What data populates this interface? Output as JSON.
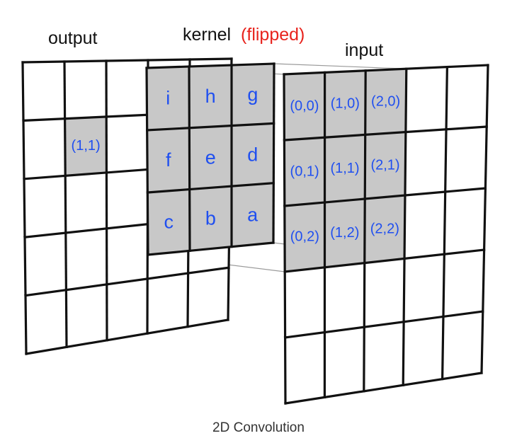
{
  "headings": {
    "output": "output",
    "kernel": "kernel",
    "kernel_note": "(flipped)",
    "input": "input"
  },
  "caption": "2D Convolution",
  "colors": {
    "label_blue": "#1f4ff0",
    "note_red": "#e8231d",
    "grid_black": "#111111",
    "shade_gray": "#c8c8c8",
    "guide_gray": "#9a9a9a"
  },
  "output_grid": {
    "rows": 5,
    "cols": 5,
    "shaded_cells": [
      {
        "col": 1,
        "row": 1,
        "label": "(1,1)"
      }
    ]
  },
  "kernel_grid": {
    "rows": 3,
    "cols": 3,
    "cells": [
      [
        "i",
        "h",
        "g"
      ],
      [
        "f",
        "e",
        "d"
      ],
      [
        "c",
        "b",
        "a"
      ]
    ]
  },
  "input_grid": {
    "rows": 5,
    "cols": 5,
    "cells": [
      [
        "(0,0)",
        "(1,0)",
        "(2,0)"
      ],
      [
        "(0,1)",
        "(1,1)",
        "(2,1)"
      ],
      [
        "(0,2)",
        "(1,2)",
        "(2,2)"
      ]
    ]
  }
}
